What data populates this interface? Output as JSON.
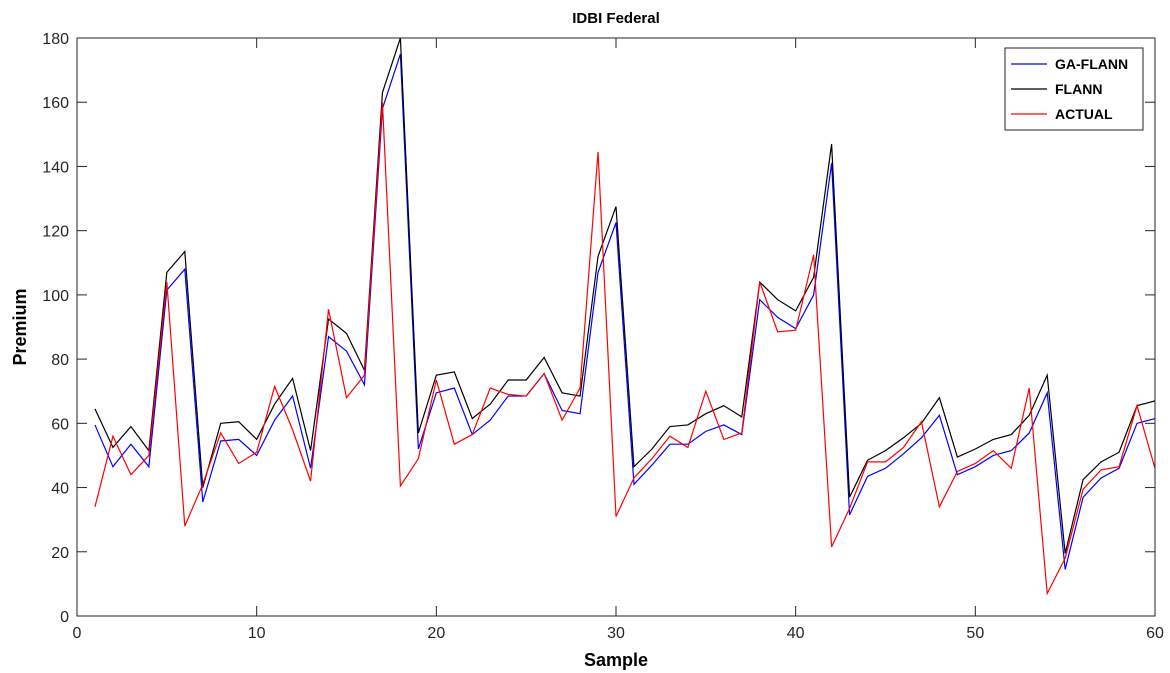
{
  "chart_data": {
    "type": "line",
    "title": "IDBI Federal",
    "xlabel": "Sample",
    "ylabel": "Premium",
    "xlim": [
      0,
      60
    ],
    "ylim": [
      0,
      180
    ],
    "xticks": [
      0,
      10,
      20,
      30,
      40,
      50,
      60
    ],
    "yticks": [
      0,
      20,
      40,
      60,
      80,
      100,
      120,
      140,
      160,
      180
    ],
    "grid": false,
    "legend_position": "top-right",
    "x": [
      1,
      2,
      3,
      4,
      5,
      6,
      7,
      8,
      9,
      10,
      11,
      12,
      13,
      14,
      15,
      16,
      17,
      18,
      19,
      20,
      21,
      22,
      23,
      24,
      25,
      26,
      27,
      28,
      29,
      30,
      31,
      32,
      33,
      34,
      35,
      36,
      37,
      38,
      39,
      40,
      41,
      42,
      43,
      44,
      45,
      46,
      47,
      48,
      49,
      50,
      51,
      52,
      53,
      54,
      55,
      56,
      57,
      58,
      59,
      60
    ],
    "series": [
      {
        "name": "GA-FLANN",
        "color": "#0000ff",
        "values": [
          59.5,
          46.5,
          53.5,
          46.5,
          101.5,
          108,
          35.5,
          54.5,
          55,
          50,
          61,
          68.5,
          46,
          87,
          82.5,
          72,
          158,
          175,
          52,
          69.5,
          71,
          56.5,
          61,
          68.5,
          68.5,
          75.5,
          64,
          63,
          107,
          122.5,
          41,
          47,
          53.5,
          53.5,
          57.5,
          59.5,
          56.5,
          98.5,
          93,
          89.5,
          100,
          141,
          31.5,
          43.5,
          46,
          50.5,
          55.5,
          62.5,
          44,
          46.5,
          50,
          51.5,
          57,
          69.5,
          14.5,
          37,
          43,
          46,
          60,
          61.5
        ]
      },
      {
        "name": "FLANN",
        "color": "#000000",
        "values": [
          64.5,
          52.5,
          59,
          51.5,
          107,
          113.5,
          40,
          60,
          60.5,
          55,
          66,
          74,
          51.5,
          92.5,
          88,
          76.5,
          163,
          180,
          57,
          75,
          76,
          61.5,
          66,
          73.5,
          73.5,
          80.5,
          69.5,
          68.5,
          112,
          127.5,
          46.5,
          52,
          59,
          59.5,
          63,
          65.5,
          62,
          104,
          98.5,
          95,
          105.5,
          147,
          37,
          48.5,
          51.5,
          55.5,
          60,
          68,
          49.5,
          52,
          55,
          56.5,
          62.5,
          75,
          19.5,
          42.5,
          48,
          51,
          65.5,
          67
        ]
      },
      {
        "name": "ACTUAL",
        "color": "#ff0000",
        "values": [
          34,
          56,
          44,
          50,
          104,
          28,
          41,
          57,
          47.5,
          51,
          71.5,
          58,
          42,
          95.5,
          68,
          75,
          160,
          40.5,
          49,
          73.5,
          53.5,
          56.5,
          71,
          69,
          68.5,
          75.5,
          61,
          71,
          144.5,
          31,
          43,
          49,
          56,
          52.5,
          70,
          55,
          57,
          104,
          88.5,
          89,
          112.5,
          21.5,
          33.5,
          48,
          48,
          52.5,
          60.5,
          34,
          45,
          47.5,
          51.5,
          46,
          71,
          7,
          18,
          39.5,
          45.5,
          46.5,
          65.5,
          46
        ]
      }
    ]
  }
}
